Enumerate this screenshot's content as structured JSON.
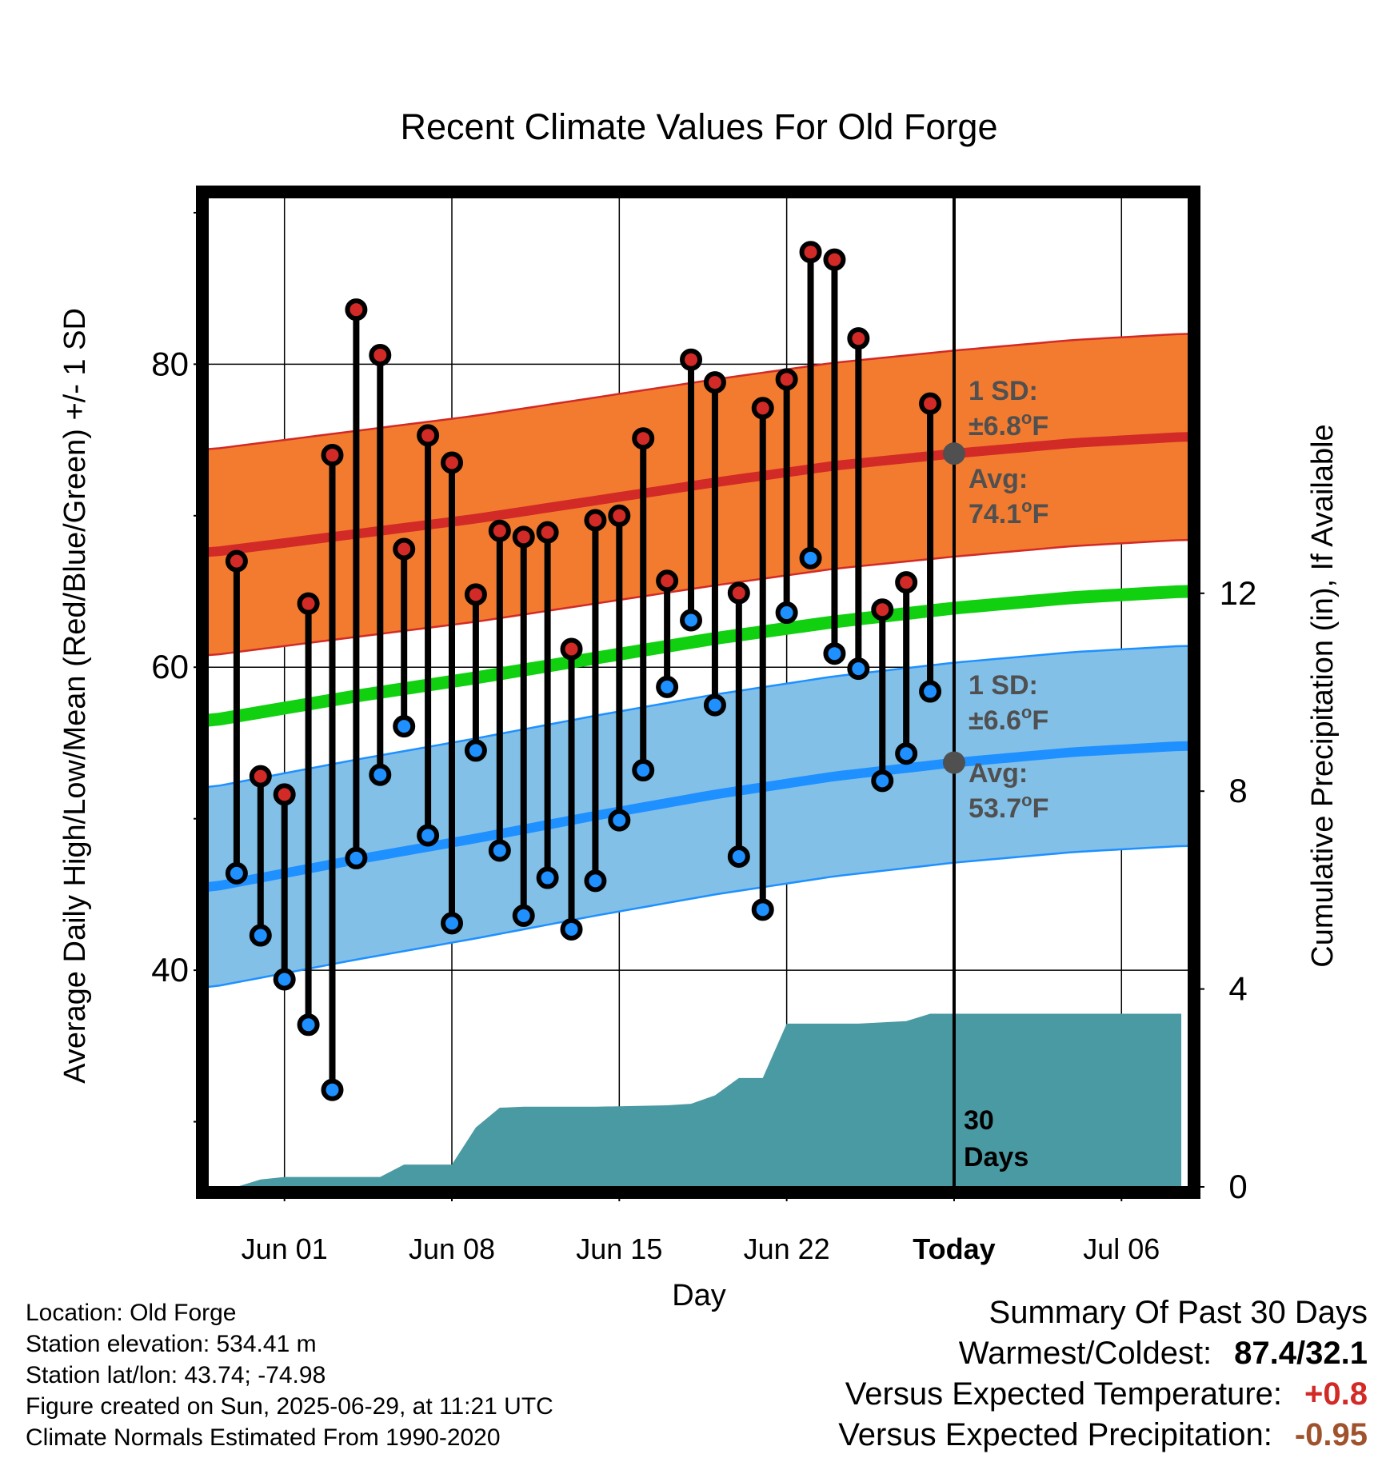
{
  "chart_data": {
    "type": "line",
    "title": "Recent Climate Values For Old Forge",
    "xlabel": "Day",
    "ylabel_left": "Average Daily High/Low/Mean (Red/Blue/Green) +/- 1 SD",
    "ylabel_right": "Cumulative Precipitation (in), If Available",
    "x_ticks": [
      {
        "day": 2,
        "label": "Jun 01"
      },
      {
        "day": 9,
        "label": "Jun 08"
      },
      {
        "day": 16,
        "label": "Jun 15"
      },
      {
        "day": 23,
        "label": "Jun 22"
      },
      {
        "day": 30,
        "label": "Today"
      },
      {
        "day": 37,
        "label": "Jul 06"
      }
    ],
    "xlim": [
      -1.2,
      39.8
    ],
    "ylim_left": [
      25.7,
      91
    ],
    "y_ticks_left": [
      40,
      60,
      80
    ],
    "y_minor_left": [
      30,
      50,
      70,
      90
    ],
    "ylim_right": [
      0,
      20
    ],
    "y_ticks_right": [
      0,
      4,
      8,
      12
    ],
    "today_day": 30,
    "days_label": [
      "30",
      "Days"
    ],
    "daily_high": [
      67.0,
      52.8,
      51.6,
      64.2,
      74.0,
      83.6,
      80.6,
      67.8,
      75.3,
      73.5,
      64.8,
      69.0,
      68.6,
      68.9,
      61.2,
      69.7,
      70.0,
      75.1,
      65.7,
      80.3,
      78.8,
      64.9,
      77.1,
      79.0,
      87.4,
      86.9,
      81.7,
      63.8,
      65.6,
      77.4
    ],
    "daily_low": [
      46.4,
      42.3,
      39.4,
      36.4,
      32.1,
      47.4,
      52.9,
      56.1,
      48.9,
      43.1,
      54.5,
      47.9,
      43.6,
      46.1,
      42.7,
      45.9,
      49.9,
      53.2,
      58.7,
      63.1,
      57.5,
      47.5,
      44.0,
      63.6,
      67.2,
      60.9,
      59.9,
      52.5,
      54.3,
      58.4
    ],
    "normal_high_avg": [
      [
        -1,
        67.6
      ],
      [
        5,
        68.8
      ],
      [
        10,
        69.8
      ],
      [
        15,
        71.0
      ],
      [
        20,
        72.2
      ],
      [
        25,
        73.3
      ],
      [
        30,
        74.1
      ],
      [
        35,
        74.8
      ],
      [
        39.5,
        75.2
      ]
    ],
    "normal_high_sd": 6.8,
    "normal_low_avg": [
      [
        -1,
        45.5
      ],
      [
        5,
        47.3
      ],
      [
        10,
        48.7
      ],
      [
        15,
        50.2
      ],
      [
        20,
        51.6
      ],
      [
        25,
        52.8
      ],
      [
        30,
        53.7
      ],
      [
        35,
        54.4
      ],
      [
        39.5,
        54.8
      ]
    ],
    "normal_low_sd": 6.6,
    "normal_mean_avg": [
      [
        -1,
        56.5
      ],
      [
        5,
        58.1
      ],
      [
        10,
        59.3
      ],
      [
        15,
        60.6
      ],
      [
        20,
        61.9
      ],
      [
        25,
        63.0
      ],
      [
        30,
        63.9
      ],
      [
        35,
        64.6
      ],
      [
        39.5,
        65.0
      ]
    ],
    "cumulative_precip": [
      [
        -1,
        0
      ],
      [
        0,
        0
      ],
      [
        1,
        0.15
      ],
      [
        2,
        0.2
      ],
      [
        3,
        0.2
      ],
      [
        6,
        0.2
      ],
      [
        7,
        0.45
      ],
      [
        8,
        0.45
      ],
      [
        9,
        0.45
      ],
      [
        10,
        1.2
      ],
      [
        11,
        1.6
      ],
      [
        12,
        1.62
      ],
      [
        15,
        1.62
      ],
      [
        18,
        1.65
      ],
      [
        19,
        1.68
      ],
      [
        20,
        1.85
      ],
      [
        21,
        2.2
      ],
      [
        22,
        2.2
      ],
      [
        23,
        3.3
      ],
      [
        26,
        3.3
      ],
      [
        28,
        3.35
      ],
      [
        29,
        3.5
      ],
      [
        39.5,
        3.5
      ]
    ],
    "annotations": {
      "high_sd": {
        "line1": "1 SD:",
        "line2": "±6.8",
        "unit": "F"
      },
      "high_avg": {
        "line1": "Avg:",
        "line2": "74.1",
        "unit": "F"
      },
      "low_sd": {
        "line1": "1 SD:",
        "line2": "±6.6",
        "unit": "F"
      },
      "low_avg": {
        "line1": "Avg:",
        "line2": "53.7",
        "unit": "F"
      },
      "degree": "o"
    },
    "colors": {
      "high_band": "#f27b2f",
      "high_line": "#d22a26",
      "low_band": "#82c0e8",
      "low_line": "#1e90ff",
      "mean_line": "#10d010",
      "precip": "#4a9aa4",
      "high_dot": "#d22a26",
      "low_dot": "#1e90ff",
      "annotation": "#505050",
      "warm_value": "#d22a26",
      "dry_value": "#a0522d"
    }
  },
  "footer": {
    "location": "Location: Old Forge",
    "elevation": "Station elevation: 534.41 m",
    "latlon": "Station lat/lon: 43.74; -74.98",
    "created": "Figure created on Sun, 2025-06-29, at 11:21 UTC",
    "normals": "Climate Normals Estimated From 1990-2020"
  },
  "summary": {
    "title": "Summary Of Past 30 Days",
    "warmest_coldest_label": "Warmest/Coldest:",
    "warmest_coldest_value": "87.4/32.1",
    "temp_label": "Versus Expected Temperature:",
    "temp_value": "+0.8",
    "precip_label": "Versus Expected Precipitation:",
    "precip_value": "-0.95"
  }
}
